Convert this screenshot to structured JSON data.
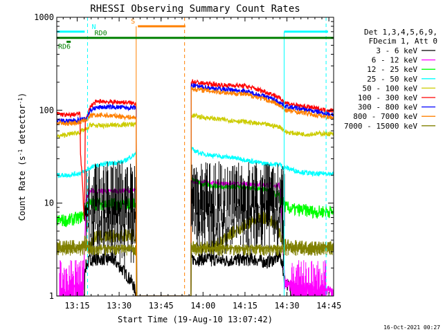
{
  "chart_data": {
    "type": "line",
    "title": "RHESSI Observing Summary Count Rates",
    "xlabel": "Start Time (19-Aug-10 13:07:42)",
    "ylabel": "Count Rate (s⁻¹ detector⁻¹)",
    "ylabel_main": "Count Rate (s",
    "ylabel_sup1": "-1",
    "ylabel_mid": " detector",
    "ylabel_sup2": "-1",
    "ylabel_end": ")",
    "yscale": "log",
    "ylim": [
      1,
      1000
    ],
    "xlim_minutes": [
      0,
      99
    ],
    "x_ticks": [
      {
        "label": "13:15",
        "minute": 7.3
      },
      {
        "label": "13:30",
        "minute": 22.3
      },
      {
        "label": "13:45",
        "minute": 37.3
      },
      {
        "label": "14:00",
        "minute": 52.3
      },
      {
        "label": "14:15",
        "minute": 67.3
      },
      {
        "label": "14:30",
        "minute": 82.3
      },
      {
        "label": "14:45",
        "minute": 97.3
      }
    ],
    "y_ticks": [
      {
        "label": "1",
        "value": 1
      },
      {
        "label": "10",
        "value": 10
      },
      {
        "label": "100",
        "value": 100
      },
      {
        "label": "1000",
        "value": 1000
      }
    ],
    "legend_header": [
      "Det 1,3,4,5,6,9,",
      "FDecim 1, Att 0"
    ],
    "series": [
      {
        "name": "3 - 6 keV",
        "color": "#000000",
        "points": [
          [
            0,
            1.0
          ],
          [
            4,
            1.0
          ],
          [
            9.9,
            1.0
          ],
          [
            10,
            2.0
          ],
          [
            12,
            2.5
          ],
          [
            16,
            2.5
          ],
          [
            20,
            2.5
          ],
          [
            23,
            2.0
          ],
          [
            27,
            1.4
          ],
          [
            28.6,
            1.0
          ],
          [
            48,
            1.0
          ],
          [
            48.1,
            2.5
          ],
          [
            55,
            2.5
          ],
          [
            60,
            2.4
          ],
          [
            70,
            2.5
          ],
          [
            75,
            2.3
          ],
          [
            78,
            2.5
          ],
          [
            80,
            2.7
          ],
          [
            81.5,
            1.5
          ],
          [
            85,
            1.0
          ],
          [
            99,
            1.0
          ]
        ]
      },
      {
        "name": "6 - 12 keV",
        "color": "#ff00ff",
        "points": [
          [
            0,
            1.0
          ],
          [
            1,
            1.0
          ],
          [
            2.5,
            1.2
          ],
          [
            4,
            1.0
          ],
          [
            6,
            1.1
          ],
          [
            7.5,
            1.25
          ],
          [
            9.5,
            1.2
          ],
          [
            10.5,
            11.5
          ],
          [
            12,
            13.5
          ],
          [
            16,
            13.5
          ],
          [
            20,
            13.5
          ],
          [
            24,
            13.6
          ],
          [
            28.4,
            13.6
          ],
          [
            28.6,
            1.0
          ],
          [
            48,
            1.0
          ],
          [
            48.1,
            17
          ],
          [
            55,
            16.5
          ],
          [
            65,
            16
          ],
          [
            70,
            16
          ],
          [
            75,
            15.7
          ],
          [
            79.5,
            15.5
          ],
          [
            80,
            14
          ],
          [
            81.5,
            1.4
          ],
          [
            85,
            1.2
          ],
          [
            90,
            1.2
          ],
          [
            93,
            1.1
          ],
          [
            96.3,
            1.2
          ],
          [
            99,
            1.0
          ]
        ]
      },
      {
        "name": "12 - 25 keV",
        "color": "#00ff00",
        "points": [
          [
            0,
            6.5
          ],
          [
            4,
            6.5
          ],
          [
            8.3,
            7.0
          ],
          [
            10,
            7.6
          ],
          [
            10.5,
            9.5
          ],
          [
            12,
            9.8
          ],
          [
            16,
            9.8
          ],
          [
            20,
            9.8
          ],
          [
            24,
            9.8
          ],
          [
            28.4,
            10
          ],
          [
            28.6,
            1.0
          ],
          [
            48,
            1.0
          ],
          [
            48.1,
            18
          ],
          [
            52,
            16
          ],
          [
            58,
            15
          ],
          [
            65,
            15
          ],
          [
            70,
            14.5
          ],
          [
            75,
            14
          ],
          [
            78,
            12.5
          ],
          [
            80,
            11
          ],
          [
            82,
            9
          ],
          [
            85,
            8.5
          ],
          [
            90,
            8.3
          ],
          [
            93,
            8
          ],
          [
            96.3,
            8.2
          ],
          [
            99,
            8
          ]
        ]
      },
      {
        "name": "25 - 50 keV",
        "color": "#00ffff",
        "points": [
          [
            0,
            20
          ],
          [
            4,
            20
          ],
          [
            8.3,
            21
          ],
          [
            10,
            22
          ],
          [
            12,
            24
          ],
          [
            16,
            26
          ],
          [
            20,
            27
          ],
          [
            24,
            28
          ],
          [
            26,
            31
          ],
          [
            28.4,
            34
          ],
          [
            28.6,
            1.0
          ],
          [
            48,
            1.0
          ],
          [
            48.1,
            38
          ],
          [
            52,
            34
          ],
          [
            58,
            32
          ],
          [
            62,
            31
          ],
          [
            66,
            30
          ],
          [
            70,
            28
          ],
          [
            75,
            26.5
          ],
          [
            80,
            26
          ],
          [
            81,
            24
          ],
          [
            82,
            24
          ],
          [
            86,
            22
          ],
          [
            90,
            21
          ],
          [
            93,
            20.5
          ],
          [
            96.3,
            21
          ],
          [
            99,
            20.5
          ]
        ]
      },
      {
        "name": "50 - 100 keV",
        "color": "#cccc00",
        "points": [
          [
            0,
            52
          ],
          [
            4,
            55
          ],
          [
            8.3,
            58
          ],
          [
            10,
            62
          ],
          [
            11,
            62
          ],
          [
            12,
            70
          ],
          [
            14,
            68
          ],
          [
            16,
            68
          ],
          [
            20,
            69
          ],
          [
            24,
            70
          ],
          [
            28.4,
            71
          ],
          [
            28.6,
            1.0
          ],
          [
            48,
            1.0
          ],
          [
            48.1,
            88
          ],
          [
            52,
            84
          ],
          [
            58,
            80
          ],
          [
            62,
            78
          ],
          [
            66,
            76
          ],
          [
            70,
            73
          ],
          [
            75,
            70
          ],
          [
            80,
            66
          ],
          [
            82,
            58
          ],
          [
            86,
            56
          ],
          [
            90,
            55
          ],
          [
            93,
            56
          ],
          [
            96.3,
            56
          ],
          [
            99,
            55
          ]
        ]
      },
      {
        "name": "100 - 300 keV",
        "color": "#ff0000",
        "points": [
          [
            0,
            92
          ],
          [
            4,
            88
          ],
          [
            8.3,
            92
          ],
          [
            8.5,
            35
          ],
          [
            9,
            20
          ],
          [
            9.4,
            12
          ],
          [
            9.9,
            6.5
          ],
          [
            10.2,
            78
          ],
          [
            11,
            87
          ],
          [
            12,
            110
          ],
          [
            14,
            122
          ],
          [
            16,
            125
          ],
          [
            20,
            122
          ],
          [
            24,
            122
          ],
          [
            26,
            120
          ],
          [
            28.4,
            118
          ],
          [
            28.6,
            1.0
          ],
          [
            48,
            1.0
          ],
          [
            48.1,
            205
          ],
          [
            52,
            195
          ],
          [
            56,
            190
          ],
          [
            60,
            185
          ],
          [
            64,
            185
          ],
          [
            68,
            180
          ],
          [
            71,
            170
          ],
          [
            74,
            160
          ],
          [
            78,
            145
          ],
          [
            82,
            120
          ],
          [
            86,
            112
          ],
          [
            90,
            108
          ],
          [
            93,
            104
          ],
          [
            96.3,
            100
          ],
          [
            99,
            99
          ]
        ]
      },
      {
        "name": "300 - 800 keV",
        "color": "#0000ff",
        "points": [
          [
            0,
            78
          ],
          [
            4,
            76
          ],
          [
            8.3,
            79
          ],
          [
            10,
            80
          ],
          [
            11,
            85
          ],
          [
            12,
            100
          ],
          [
            14,
            106
          ],
          [
            16,
            108
          ],
          [
            20,
            108
          ],
          [
            24,
            107
          ],
          [
            28.4,
            105
          ],
          [
            28.6,
            1.0
          ],
          [
            48,
            1.0
          ],
          [
            48.1,
            185
          ],
          [
            52,
            178
          ],
          [
            56,
            172
          ],
          [
            60,
            168
          ],
          [
            64,
            164
          ],
          [
            68,
            158
          ],
          [
            71,
            150
          ],
          [
            74,
            142
          ],
          [
            78,
            130
          ],
          [
            82,
            110
          ],
          [
            86,
            104
          ],
          [
            90,
            100
          ],
          [
            93,
            96
          ],
          [
            96.3,
            92
          ],
          [
            99,
            90
          ]
        ]
      },
      {
        "name": "800 - 7000 keV",
        "color": "#ff8000",
        "points": [
          [
            0,
            72
          ],
          [
            4,
            72
          ],
          [
            8.3,
            74
          ],
          [
            10,
            78
          ],
          [
            11,
            80
          ],
          [
            12,
            87
          ],
          [
            14,
            88
          ],
          [
            16,
            88
          ],
          [
            20,
            87
          ],
          [
            24,
            85
          ],
          [
            28.4,
            83
          ],
          [
            28.6,
            1.0
          ],
          [
            48,
            1.0
          ],
          [
            48.1,
            170
          ],
          [
            52,
            165
          ],
          [
            56,
            160
          ],
          [
            60,
            155
          ],
          [
            64,
            152
          ],
          [
            68,
            147
          ],
          [
            71,
            140
          ],
          [
            74,
            132
          ],
          [
            78,
            120
          ],
          [
            82,
            100
          ],
          [
            86,
            96
          ],
          [
            90,
            92
          ],
          [
            93,
            88
          ],
          [
            96.3,
            85
          ],
          [
            99,
            84
          ]
        ]
      },
      {
        "name": "7000 - 15000 keV",
        "color": "#808000",
        "points": [
          [
            0,
            3.4
          ],
          [
            4,
            3.4
          ],
          [
            8.3,
            3.4
          ],
          [
            10,
            3.8
          ],
          [
            12,
            3.5
          ],
          [
            14,
            4.4
          ],
          [
            16,
            4.3
          ],
          [
            20,
            4.4
          ],
          [
            24,
            4.5
          ],
          [
            28.4,
            4.5
          ],
          [
            28.6,
            1.0
          ],
          [
            48,
            1.0
          ],
          [
            48.1,
            3.4
          ],
          [
            54,
            3.4
          ],
          [
            58,
            3.6
          ],
          [
            62,
            4.6
          ],
          [
            66,
            5.5
          ],
          [
            70,
            6.3
          ],
          [
            74,
            7.0
          ],
          [
            78,
            6.0
          ],
          [
            80,
            4.5
          ],
          [
            82,
            3.5
          ],
          [
            86,
            3.4
          ],
          [
            90,
            3.3
          ],
          [
            93,
            3.3
          ],
          [
            96.3,
            3.3
          ],
          [
            99,
            3.3
          ]
        ]
      }
    ],
    "shaded_markers": {
      "hi_color": "#ff00ff",
      "trace_color": "#000000",
      "noise_color": "#808000"
    },
    "flags": [
      {
        "label": "N",
        "color": "#00ffff",
        "value": 700,
        "start": 0,
        "end": 10,
        "label_at": 12.5,
        "dashed_lines": [
          11.0,
          96.3
        ],
        "solid_lines": [
          0,
          81.3
        ],
        "segments": [
          [
            0,
            10
          ],
          [
            81.3,
            97
          ]
        ]
      },
      {
        "label": "S",
        "color": "#ff8000",
        "value": 800,
        "start": 29,
        "end": 46,
        "label_at": 26.5,
        "dashed_lines": [
          45.7
        ],
        "solid_lines": [
          28.4
        ]
      },
      {
        "label": "RD0",
        "color": "#008000",
        "value": 600,
        "start": 0,
        "end": 99,
        "label_at": 13.5
      },
      {
        "label": "RD6",
        "color": "#008000",
        "value": 545,
        "start": 3.5,
        "end": 5.0,
        "label_at": 0.5
      }
    ],
    "footer_date": "16-Oct-2021 00:27"
  }
}
